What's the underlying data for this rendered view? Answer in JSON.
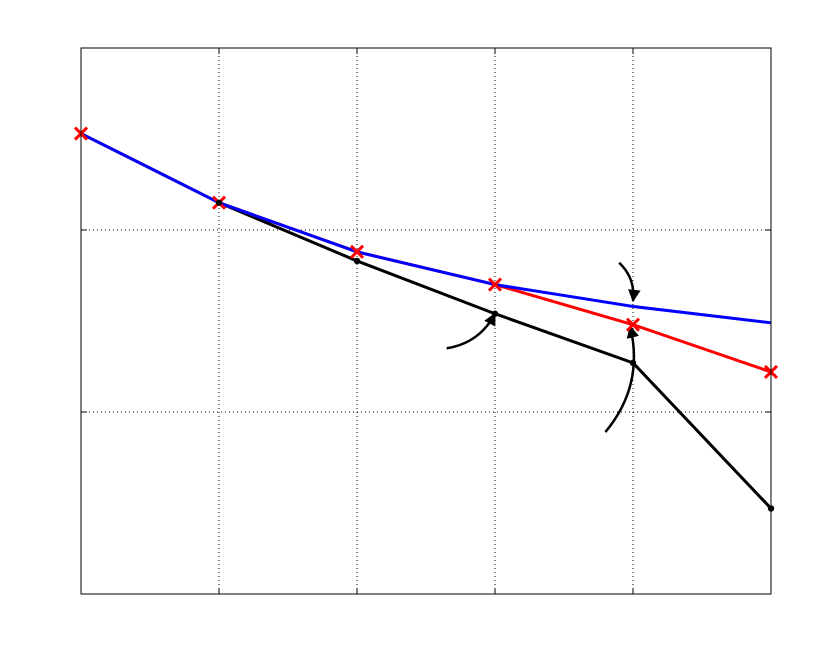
{
  "chart_data": {
    "type": "line",
    "title": "",
    "xlabel": "",
    "ylabel": "",
    "xlim": [
      0,
      5
    ],
    "ylim": [
      0,
      3
    ],
    "grid": true,
    "colors": {
      "blue": "#0000ff",
      "red": "#ff0000",
      "black": "#000000",
      "grid": "#000000"
    },
    "series": [
      {
        "key": "blue",
        "color": "#0000ff",
        "marker": "none",
        "x": [
          0,
          1,
          2,
          3,
          4,
          5
        ],
        "y": [
          2.53,
          2.15,
          1.88,
          1.7,
          1.58,
          1.49
        ]
      },
      {
        "key": "red",
        "color": "#ff0000",
        "marker": "x",
        "x": [
          0,
          1,
          2,
          3,
          4,
          5
        ],
        "y": [
          2.53,
          2.15,
          1.88,
          1.7,
          1.48,
          1.22
        ]
      },
      {
        "key": "black",
        "color": "#000000",
        "marker": "dot",
        "x": [
          1,
          2,
          3,
          4,
          5
        ],
        "y": [
          2.15,
          1.83,
          1.54,
          1.27,
          0.47
        ]
      }
    ],
    "annotations": [
      {
        "type": "arrow",
        "from": [
          2.65,
          1.35
        ],
        "to": [
          3.0,
          1.54
        ]
      },
      {
        "type": "arrow",
        "from": [
          3.9,
          1.82
        ],
        "to": [
          4.0,
          1.61
        ]
      },
      {
        "type": "arrow",
        "from": [
          3.8,
          0.89
        ],
        "to": [
          3.98,
          1.47
        ]
      }
    ]
  }
}
